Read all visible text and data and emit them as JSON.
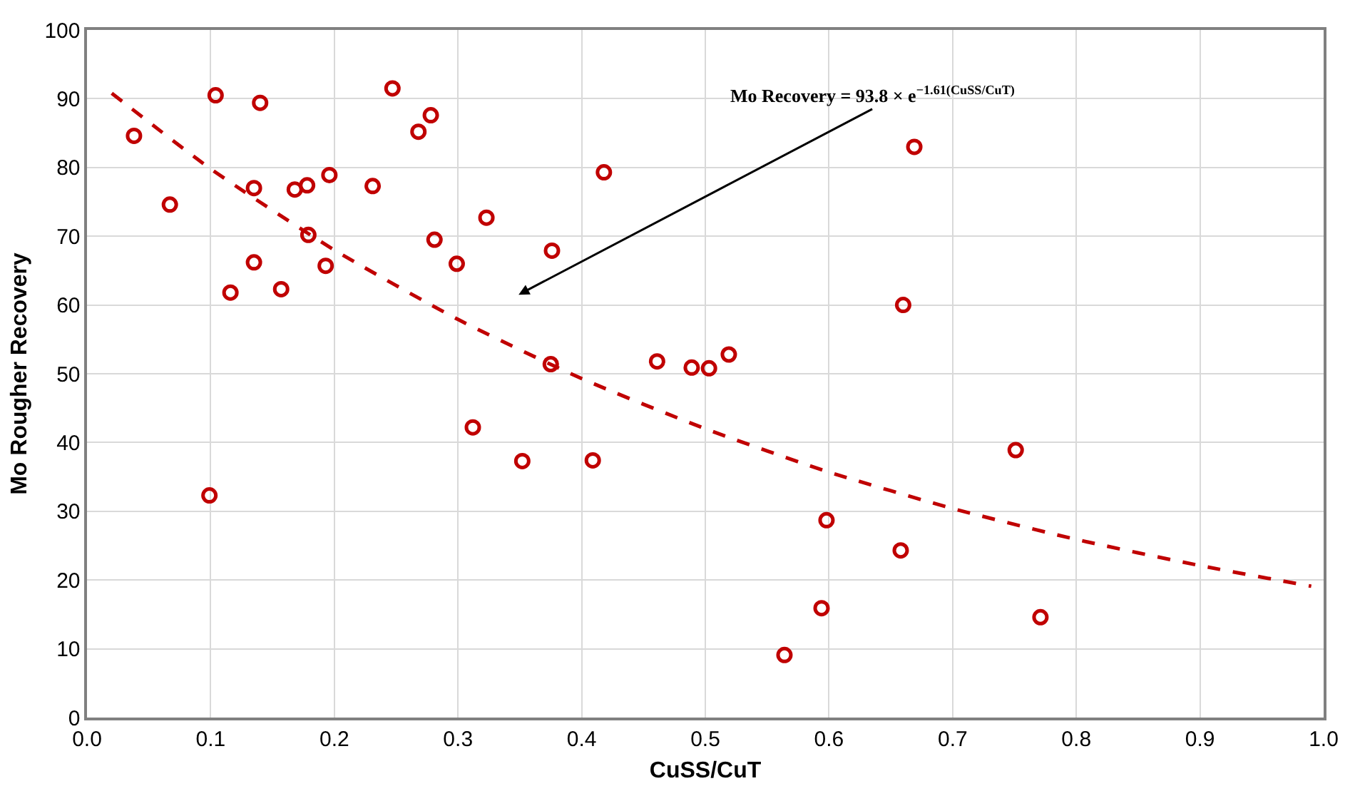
{
  "chart_data": {
    "type": "scatter",
    "xlabel": "CuSS/CuT",
    "ylabel": "Mo Rougher Recovery",
    "xlim": [
      0,
      1
    ],
    "xticks": [
      {
        "value": 0,
        "label": "0.0"
      },
      0.1,
      0.2,
      0.3,
      0.4,
      0.5,
      0.6,
      0.7,
      0.8,
      0.9,
      {
        "value": 1,
        "label": "1.0"
      }
    ],
    "ylim": [
      0,
      100
    ],
    "yticks": [
      0,
      10,
      20,
      30,
      40,
      50,
      60,
      70,
      80,
      90,
      100
    ],
    "grid": true,
    "annotations": [
      "Mo Recovery = 93.8 × e$^{−1.61(CuSS/CuT)}$"
    ],
    "series": [
      {
        "marker": "circle",
        "color": "#c00000",
        "x": [
          0.038,
          0.104,
          0.14,
          0.067,
          0.135,
          0.168,
          0.178,
          0.196,
          0.231,
          0.247,
          0.268,
          0.278,
          0.323,
          0.179,
          0.281,
          0.299,
          0.135,
          0.193,
          0.116,
          0.157,
          0.312,
          0.099,
          0.418,
          0.376,
          0.375,
          0.461,
          0.489,
          0.503,
          0.519,
          0.352,
          0.409,
          0.669,
          0.66,
          0.751,
          0.598,
          0.658,
          0.594,
          0.771,
          0.564
        ],
        "values": [
          84.6,
          90.5,
          89.4,
          74.6,
          77.0,
          76.8,
          77.4,
          78.9,
          77.3,
          91.5,
          85.2,
          87.6,
          72.7,
          70.2,
          69.5,
          66.0,
          66.2,
          65.7,
          61.8,
          62.3,
          42.2,
          32.3,
          79.3,
          67.9,
          51.4,
          51.8,
          50.9,
          50.8,
          52.8,
          37.3,
          37.4,
          83.0,
          60.0,
          38.9,
          28.7,
          24.3,
          15.9,
          14.6,
          9.1
        ]
      },
      {
        "type": "line",
        "marker": "none",
        "line_style": "dashed",
        "color": "#c00000",
        "x": [
          0.02,
          0.1,
          0.2,
          0.3,
          0.4,
          0.5,
          0.6,
          0.7,
          0.8,
          0.9,
          0.99
        ],
        "values": [
          90.8,
          79.8,
          68.0,
          57.9,
          49.3,
          42.0,
          35.7,
          30.4,
          25.9,
          22.1,
          19.1
        ]
      }
    ]
  }
}
